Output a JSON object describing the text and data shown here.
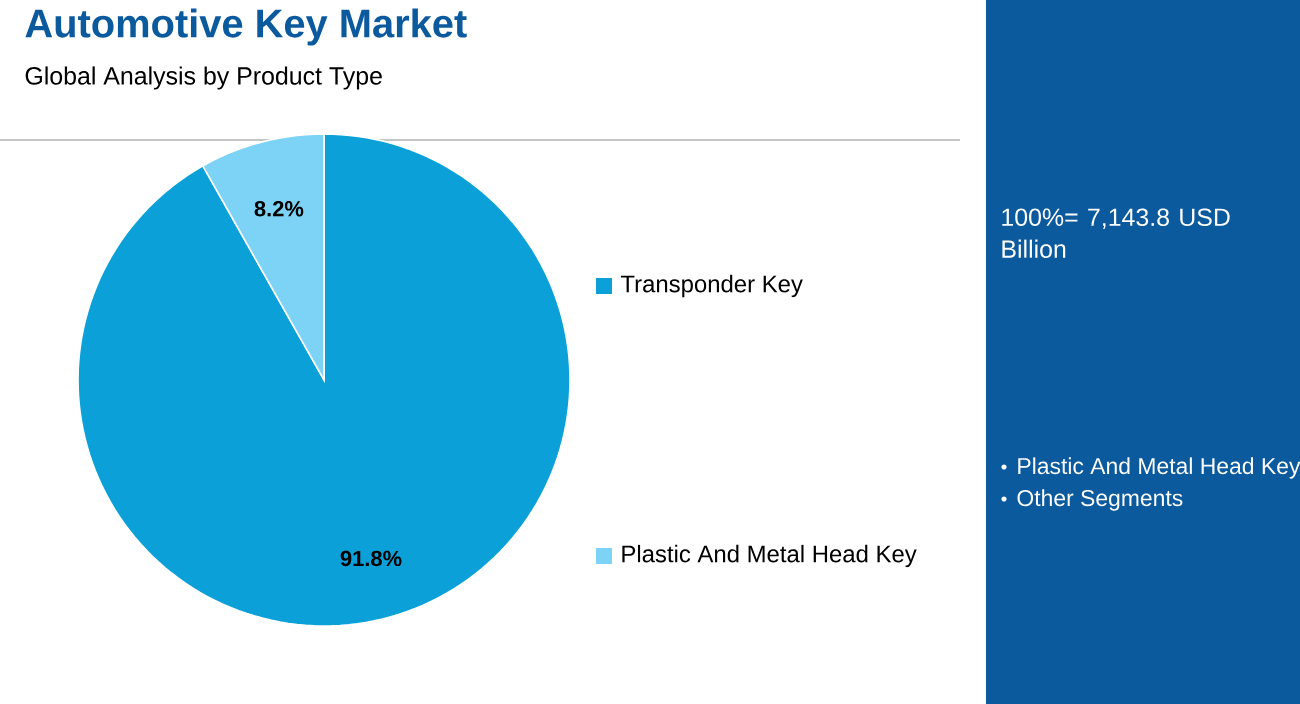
{
  "chart_data": {
    "type": "pie",
    "title": "Automotive Key Market",
    "subtitle": "Global Analysis by Product Type",
    "categories": [
      "Transponder Key",
      "Plastic And Metal Head Key"
    ],
    "values": [
      91.8,
      8.2
    ],
    "colors": [
      "#0ba1d8",
      "#7dd3f5"
    ],
    "value_labels": [
      "91.8%",
      "8.2%"
    ],
    "legend": "right",
    "annotations": [
      "100%= 7,143.8 USD Billion",
      "Plastic And Metal Head Key",
      "Other Segments"
    ]
  }
}
